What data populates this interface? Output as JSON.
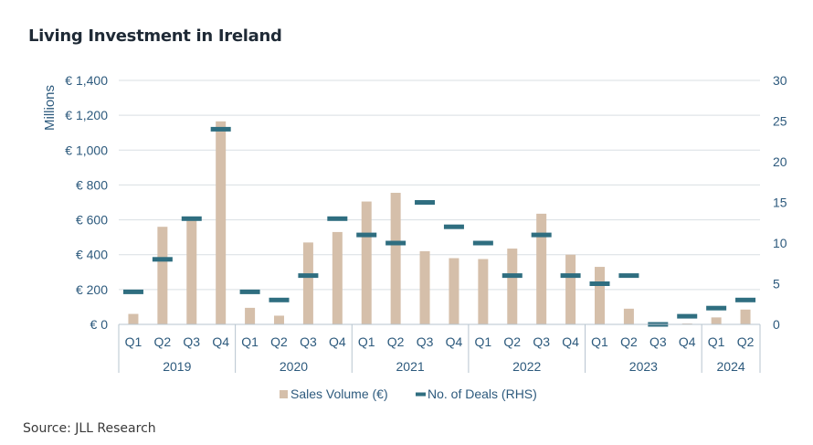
{
  "title": "Living Investment in Ireland",
  "source": "Source: JLL Research",
  "colors": {
    "bar": "#d5bfaa",
    "deal": "#2f6e80",
    "axis_text": "#2d5a7d",
    "grid": "#d9dfe3",
    "frame": "#b7c4cf"
  },
  "chart_data": {
    "type": "bar",
    "title": "Living Investment in Ireland",
    "ylabel": "Millions",
    "ylim": [
      0,
      1400
    ],
    "y_ticks": [
      "€ 0",
      "€ 200",
      "€ 400",
      "€ 600",
      "€ 800",
      "€ 1,000",
      "€ 1,200",
      "€ 1,400"
    ],
    "y_tick_values": [
      0,
      200,
      400,
      600,
      800,
      1000,
      1200,
      1400
    ],
    "y2lim": [
      0,
      30
    ],
    "y2_ticks": [
      "0",
      "5",
      "10",
      "15",
      "20",
      "25",
      "30"
    ],
    "y2_tick_values": [
      0,
      5,
      10,
      15,
      20,
      25,
      30
    ],
    "categories": [
      "Q1",
      "Q2",
      "Q3",
      "Q4",
      "Q1",
      "Q2",
      "Q3",
      "Q4",
      "Q1",
      "Q2",
      "Q3",
      "Q4",
      "Q1",
      "Q2",
      "Q3",
      "Q4",
      "Q1",
      "Q2",
      "Q3",
      "Q4",
      "Q1",
      "Q2"
    ],
    "years": [
      {
        "label": "2019",
        "count": 4
      },
      {
        "label": "2020",
        "count": 4
      },
      {
        "label": "2021",
        "count": 4
      },
      {
        "label": "2022",
        "count": 4
      },
      {
        "label": "2023",
        "count": 4
      },
      {
        "label": "2024",
        "count": 2
      }
    ],
    "series": [
      {
        "name": "Sales Volume (€)",
        "kind": "bar",
        "axis": "left",
        "values": [
          60,
          560,
          600,
          1165,
          95,
          50,
          470,
          530,
          705,
          755,
          420,
          380,
          375,
          435,
          635,
          400,
          330,
          90,
          5,
          5,
          40,
          85
        ]
      },
      {
        "name": "No. of Deals (RHS)",
        "kind": "dash",
        "axis": "right",
        "values": [
          4,
          8,
          13,
          24,
          4,
          3,
          6,
          13,
          11,
          10,
          15,
          12,
          10,
          6,
          11,
          6,
          5,
          6,
          0,
          1,
          2,
          3
        ]
      }
    ],
    "legend": [
      "Sales Volume (€)",
      "No. of Deals (RHS)"
    ],
    "legend_position": "bottom"
  }
}
